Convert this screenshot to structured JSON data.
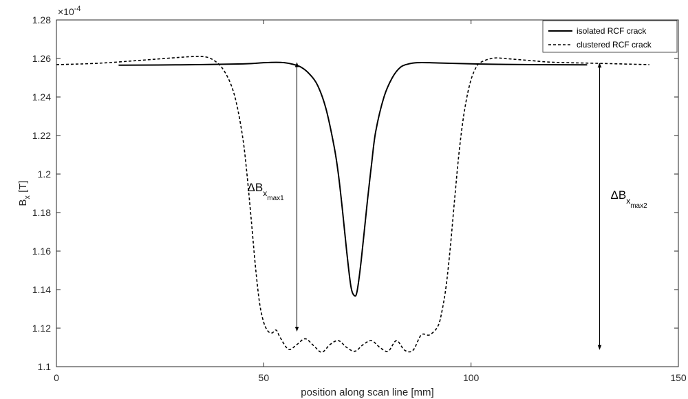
{
  "chart_data": {
    "type": "line",
    "xlabel": "position along scan line [mm]",
    "ylabel_main": "B",
    "ylabel_sub": "x",
    "ylabel_unit": " [T]",
    "y_multiplier": "×10",
    "y_multiplier_exp": "-4",
    "xlim": [
      0,
      150
    ],
    "ylim": [
      1.1,
      1.28
    ],
    "x_ticks": [
      0,
      50,
      100,
      150
    ],
    "x_tick_labels": [
      "0",
      "50",
      "100",
      "150"
    ],
    "y_ticks": [
      1.1,
      1.12,
      1.14,
      1.16,
      1.18,
      1.2,
      1.22,
      1.24,
      1.26,
      1.28
    ],
    "y_tick_labels": [
      "1.1",
      "1.12",
      "1.14",
      "1.16",
      "1.18",
      "1.2",
      "1.22",
      "1.24",
      "1.26",
      "1.28"
    ],
    "grid": false,
    "legend_position": "top-right",
    "series": [
      {
        "name": "isolated RCF crack",
        "style": "solid",
        "color": "#000000",
        "x": [
          15,
          30,
          45,
          50,
          53,
          55,
          57,
          59,
          61,
          63,
          65,
          67,
          68,
          69,
          70,
          71,
          71.8,
          72.5,
          73.5,
          75,
          76,
          77,
          79,
          81,
          83,
          85,
          87,
          90,
          95,
          105,
          115,
          128
        ],
        "y": [
          1.2565,
          1.2567,
          1.2572,
          1.2578,
          1.258,
          1.2578,
          1.257,
          1.2555,
          1.252,
          1.246,
          1.234,
          1.214,
          1.2,
          1.181,
          1.16,
          1.142,
          1.137,
          1.139,
          1.155,
          1.186,
          1.205,
          1.222,
          1.24,
          1.25,
          1.2555,
          1.2572,
          1.2578,
          1.2578,
          1.2575,
          1.257,
          1.2568,
          1.2567
        ]
      },
      {
        "name": "clustered RCF crack",
        "style": "dashed",
        "color": "#000000",
        "x": [
          0,
          10,
          20,
          28,
          33,
          36,
          38,
          40,
          42,
          43.5,
          45,
          46,
          47,
          48,
          49,
          50,
          51,
          52,
          53,
          54,
          56,
          58,
          60,
          62,
          64,
          66,
          68,
          70,
          72,
          74,
          76,
          78,
          80,
          82,
          84,
          86,
          88,
          90,
          92,
          93,
          94,
          95,
          96,
          97,
          98,
          99,
          100,
          101,
          102,
          104,
          106,
          108,
          111,
          115,
          120,
          130,
          143
        ],
        "y": [
          1.2568,
          1.2575,
          1.259,
          1.2603,
          1.261,
          1.2608,
          1.259,
          1.255,
          1.247,
          1.236,
          1.218,
          1.199,
          1.176,
          1.152,
          1.133,
          1.123,
          1.1185,
          1.1175,
          1.119,
          1.115,
          1.109,
          1.1115,
          1.1145,
          1.111,
          1.1075,
          1.1115,
          1.1135,
          1.11,
          1.108,
          1.1115,
          1.1135,
          1.11,
          1.108,
          1.1135,
          1.1085,
          1.1085,
          1.1165,
          1.1165,
          1.121,
          1.129,
          1.142,
          1.162,
          1.186,
          1.209,
          1.227,
          1.24,
          1.249,
          1.2545,
          1.2575,
          1.2595,
          1.2603,
          1.26,
          1.2595,
          1.2588,
          1.258,
          1.2575,
          1.2568
        ]
      }
    ],
    "annotations": [
      {
        "main": "ΔB",
        "sub": "x",
        "subsub": "max1",
        "arrow_x": 58,
        "arrow_y_top": 1.2578,
        "arrow_y_bottom": 1.1185
      },
      {
        "main": "ΔB",
        "sub": "x",
        "subsub": "max2",
        "arrow_x": 131,
        "arrow_y_top": 1.2575,
        "arrow_y_bottom": 1.109
      }
    ]
  }
}
